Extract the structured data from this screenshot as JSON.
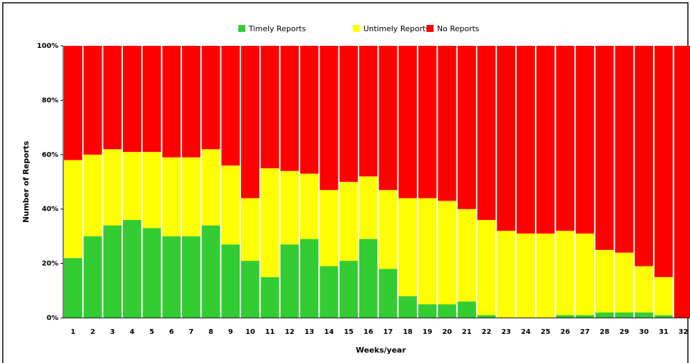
{
  "chart_data": {
    "type": "stacked_bar_100",
    "xlabel": "Weeks/year",
    "ylabel": "Number of Reports",
    "categories": [
      "1",
      "2",
      "3",
      "4",
      "5",
      "6",
      "7",
      "8",
      "9",
      "10",
      "11",
      "12",
      "13",
      "14",
      "15",
      "16",
      "17",
      "18",
      "19",
      "20",
      "21",
      "22",
      "23",
      "24",
      "25",
      "26",
      "27",
      "28",
      "29",
      "30",
      "31",
      "32"
    ],
    "series": [
      {
        "name": "Timely Reports",
        "color": "#33cc33",
        "values": [
          22,
          30,
          34,
          36,
          33,
          30,
          30,
          34,
          27,
          21,
          15,
          27,
          29,
          19,
          21,
          29,
          18,
          8,
          5,
          5,
          6,
          1,
          0,
          0,
          0,
          1,
          1,
          2,
          2,
          2,
          1,
          0
        ]
      },
      {
        "name": "Untimely Reports",
        "color": "#ffff00",
        "values": [
          36,
          30,
          28,
          25,
          28,
          29,
          29,
          28,
          29,
          23,
          40,
          27,
          24,
          28,
          29,
          23,
          29,
          36,
          39,
          38,
          34,
          35,
          32,
          31,
          31,
          31,
          30,
          23,
          22,
          17,
          14,
          0
        ]
      },
      {
        "name": "No Reports",
        "color": "#ff0000",
        "values": [
          42,
          40,
          38,
          39,
          39,
          41,
          41,
          38,
          44,
          56,
          45,
          46,
          47,
          53,
          50,
          48,
          53,
          56,
          56,
          57,
          60,
          64,
          68,
          69,
          69,
          68,
          69,
          75,
          76,
          81,
          85,
          100
        ]
      }
    ],
    "ylim": [
      0,
      100
    ],
    "yticks": [
      {
        "value": 0,
        "label": "0%"
      },
      {
        "value": 20,
        "label": "20%"
      },
      {
        "value": 40,
        "label": "40%"
      },
      {
        "value": 60,
        "label": "60%"
      },
      {
        "value": 80,
        "label": "80%"
      },
      {
        "value": 100,
        "label": "100%"
      }
    ],
    "legend": "top"
  }
}
